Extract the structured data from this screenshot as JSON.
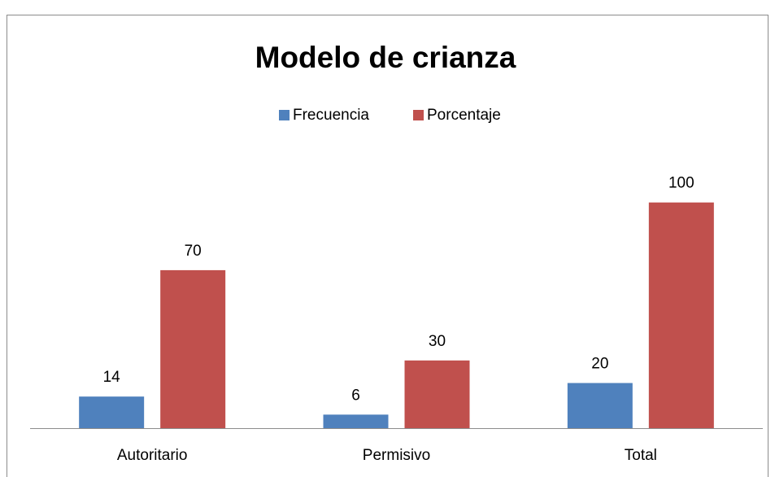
{
  "chart_data": {
    "type": "bar",
    "title": "Modelo de crianza",
    "categories": [
      "Autoritario",
      "Permisivo",
      "Total"
    ],
    "series": [
      {
        "name": "Frecuencia",
        "color": "#4f81bd",
        "values": [
          14,
          6,
          20
        ]
      },
      {
        "name": "Porcentaje",
        "color": "#c0504d",
        "values": [
          70,
          30,
          100
        ]
      }
    ],
    "ylim": [
      0,
      110
    ],
    "legend": "top",
    "grid": false
  }
}
